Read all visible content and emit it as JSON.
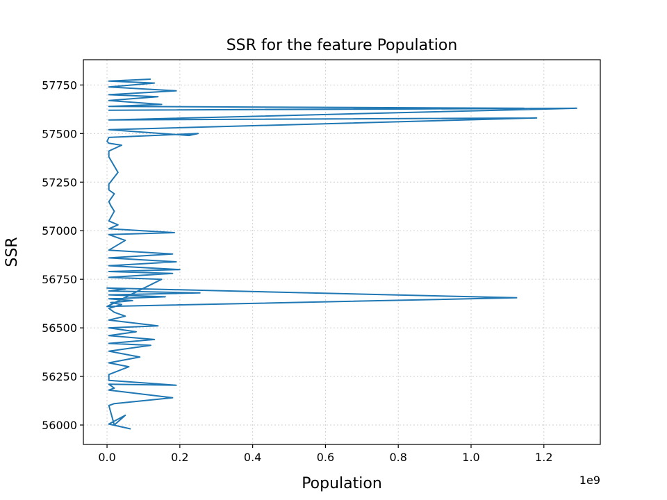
{
  "chart_data": {
    "type": "line",
    "title": "SSR for the feature Population",
    "xlabel": "Population",
    "ylabel": "SSR",
    "x_offset_label": "1e9",
    "xlim": [
      -0.065,
      1.355
    ],
    "ylim": [
      55900,
      57880
    ],
    "xticks": [
      0.0,
      0.2,
      0.4,
      0.6,
      0.8,
      1.0,
      1.2
    ],
    "xtick_labels": [
      "0.0",
      "0.2",
      "0.4",
      "0.6",
      "0.8",
      "1.0",
      "1.2"
    ],
    "yticks": [
      56000,
      56250,
      56500,
      56750,
      57000,
      57250,
      57500,
      57750
    ],
    "ytick_labels": [
      "56000",
      "56250",
      "56500",
      "56750",
      "57000",
      "57250",
      "57500",
      "57750"
    ],
    "grid": true,
    "color": "#1f77b4",
    "series": [
      {
        "x": [
          0.065,
          0.005,
          0.05,
          0.02,
          0.005,
          0.02,
          0.18,
          0.005,
          0.02,
          0.005,
          0.19,
          0.005,
          0.005,
          0.06,
          0.005,
          0.09,
          0.005,
          0.12,
          0.005,
          0.13,
          0.005,
          0.08,
          0.005,
          0.14,
          0.005,
          0.05,
          0.02,
          0.005,
          0.04,
          0.01,
          0.07,
          0.005,
          0.16,
          0.005,
          0.255,
          0.005,
          0.05,
          0.0,
          1.125,
          0.0,
          0.15,
          0.005,
          0.18,
          0.005,
          0.2,
          0.005,
          0.19,
          0.005,
          0.18,
          0.005,
          0.05,
          0.005,
          0.185,
          0.005,
          0.03,
          0.005,
          0.02,
          0.01,
          0.005,
          0.02,
          0.005,
          0.005,
          0.03,
          0.005,
          0.005,
          0.04,
          0.005,
          0.0,
          0.005,
          0.25,
          0.225,
          0.005,
          1.18,
          0.005,
          1.29,
          0.005,
          1.145,
          0.005,
          0.15,
          0.005,
          0.14,
          0.005,
          0.19,
          0.005,
          0.13,
          0.005,
          0.12
        ],
        "y": [
          55980,
          56005,
          56050,
          56000,
          56100,
          56110,
          56140,
          56180,
          56190,
          56210,
          56205,
          56230,
          56260,
          56300,
          56320,
          56350,
          56380,
          56410,
          56420,
          56440,
          56460,
          56480,
          56500,
          56510,
          56540,
          56560,
          56580,
          56600,
          56620,
          56630,
          56640,
          56650,
          56660,
          56670,
          56680,
          56690,
          56700,
          56705,
          56655,
          56610,
          56750,
          56760,
          56780,
          56790,
          56800,
          56820,
          56840,
          56860,
          56880,
          56900,
          56950,
          56980,
          56990,
          57010,
          57030,
          57050,
          57100,
          57130,
          57150,
          57190,
          57210,
          57240,
          57300,
          57380,
          57410,
          57440,
          57450,
          57460,
          57480,
          57500,
          57490,
          57520,
          57580,
          57570,
          57630,
          57620,
          57630,
          57640,
          57650,
          57670,
          57690,
          57700,
          57720,
          57740,
          57760,
          57770,
          57780
        ]
      }
    ]
  }
}
